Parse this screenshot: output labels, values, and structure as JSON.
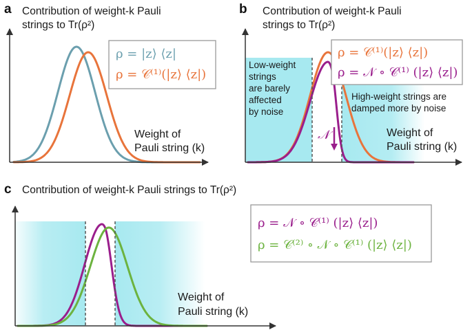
{
  "colors": {
    "teal": "#6b9fae",
    "orange": "#e8743b",
    "purple": "#9a1e8c",
    "green": "#6cb33f",
    "cyan_shade": "#a7e9f0",
    "axis": "#333333",
    "legend_border": "#999999"
  },
  "panels": {
    "a": {
      "letter": "a",
      "title_lines": [
        "Contribution of weight-k Pauli",
        "strings to Tr(ρ²)"
      ],
      "axis_label_lines": [
        "Weight of",
        "Pauli string (k)"
      ],
      "legend": [
        {
          "text": "ρ = |z⟩ ⟨z|",
          "color": "teal"
        },
        {
          "text": "ρ = 𝒞⁽¹⁾(|z⟩ ⟨z|)",
          "color": "orange"
        }
      ]
    },
    "b": {
      "letter": "b",
      "title_lines": [
        "Contribution of weight-k Pauli",
        "strings to Tr(ρ²)"
      ],
      "axis_label_lines": [
        "Weight of",
        "Pauli string (k)"
      ],
      "legend": [
        {
          "text": "ρ = 𝒞⁽¹⁾(|z⟩ ⟨z|)",
          "color": "orange"
        },
        {
          "text": "ρ = 𝒩 ∘ 𝒞⁽¹⁾ (|z⟩ ⟨z|)",
          "color": "purple"
        }
      ],
      "low_weight_note": [
        "Low-weight",
        "strings",
        "are barely",
        "affected",
        "by noise"
      ],
      "high_weight_note": [
        "High-weight strings are",
        "damped more by noise"
      ],
      "noise_arrow_label": "𝒩"
    },
    "c": {
      "letter": "c",
      "title_lines": [
        "Contribution of weight-k Pauli strings to Tr(ρ²)"
      ],
      "axis_label_lines": [
        "Weight of",
        "Pauli string (k)"
      ],
      "legend": [
        {
          "text": "ρ = 𝒩 ∘ 𝒞⁽¹⁾ (|z⟩ ⟨z|)",
          "color": "purple"
        },
        {
          "text": "ρ = 𝒞⁽²⁾ ∘ 𝒩 ∘ 𝒞⁽¹⁾ (|z⟩ ⟨z|)",
          "color": "green"
        }
      ]
    }
  }
}
